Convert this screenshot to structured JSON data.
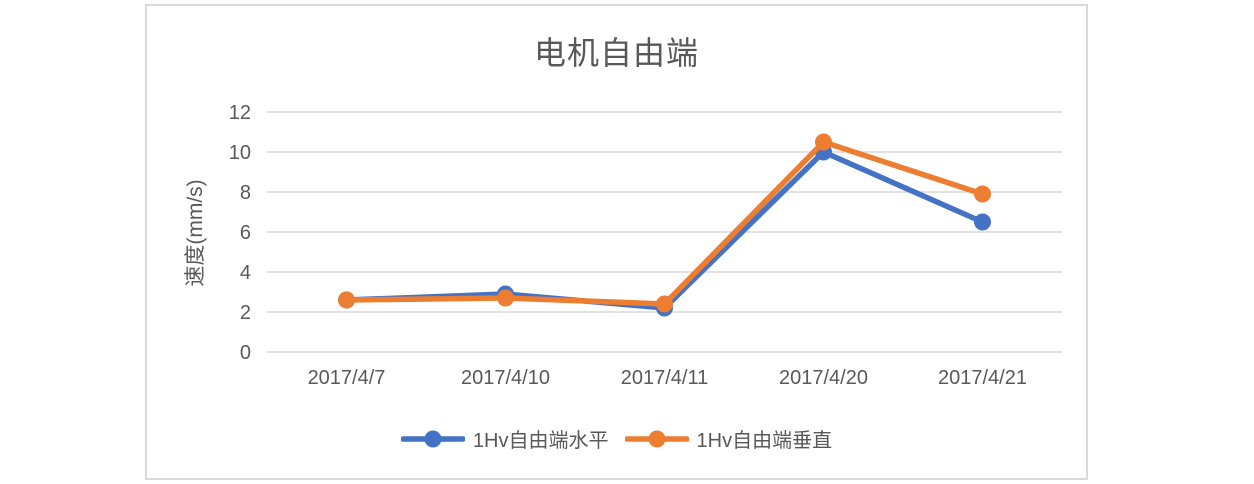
{
  "chart": {
    "title": "电机自由端",
    "y_axis_title": "速度(mm/s)",
    "colors": {
      "grid": "#d9d9d9",
      "border": "#d9d9d9",
      "text": "#595959",
      "background": "#ffffff",
      "series_blue": "#4472C4",
      "series_orange": "#ED7D31"
    }
  },
  "chart_data": {
    "type": "line",
    "title": "电机自由端",
    "categories": [
      "2017/4/7",
      "2017/4/10",
      "2017/4/11",
      "2017/4/20",
      "2017/4/21"
    ],
    "series": [
      {
        "name": "1Hv自由端水平",
        "color": "#4472C4",
        "values": [
          2.6,
          2.9,
          2.2,
          10.0,
          6.5
        ]
      },
      {
        "name": "1Hv自由端垂直",
        "color": "#ED7D31",
        "values": [
          2.6,
          2.7,
          2.4,
          10.5,
          7.9
        ]
      }
    ],
    "xlabel": "",
    "ylabel": "速度(mm/s)",
    "ylim": [
      0,
      12
    ],
    "yticks": [
      0,
      2,
      4,
      6,
      8,
      10,
      12
    ],
    "grid": true,
    "legend_position": "bottom",
    "marker": "circle"
  }
}
